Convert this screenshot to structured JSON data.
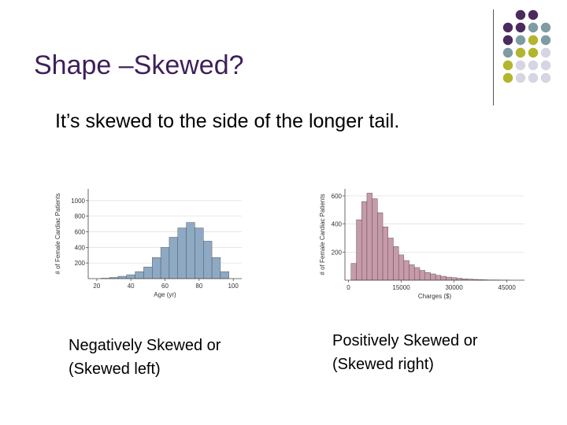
{
  "slide": {
    "title": "Shape –Skewed?",
    "subtitle": "It’s skewed to the side of the longer tail.",
    "caption_left_line1": "Negatively Skewed or",
    "caption_left_line2": "(Skewed left)",
    "caption_right_line1": "Positively Skewed or",
    "caption_right_line2": "(Skewed right)"
  },
  "decoration": {
    "dot_colors": [
      "#4b2a5e",
      "#7f9ba3",
      "#b3b52c",
      "#d5d5e3"
    ]
  },
  "chart_data": [
    {
      "type": "bar",
      "title": "",
      "xlabel": "Age (yr)",
      "ylabel": "# of Female Cardiac Patients",
      "xlim": [
        15,
        105
      ],
      "ylim": [
        0,
        1150
      ],
      "xticks": [
        20,
        40,
        60,
        80,
        100
      ],
      "yticks": [
        200,
        400,
        600,
        800,
        1000
      ],
      "grid": true,
      "bar_color": "#8ea9c4",
      "bin_width": 5,
      "bins": [
        {
          "x": 25,
          "value": 5
        },
        {
          "x": 30,
          "value": 15
        },
        {
          "x": 35,
          "value": 30
        },
        {
          "x": 40,
          "value": 50
        },
        {
          "x": 45,
          "value": 90
        },
        {
          "x": 50,
          "value": 150
        },
        {
          "x": 55,
          "value": 270
        },
        {
          "x": 60,
          "value": 400
        },
        {
          "x": 65,
          "value": 530
        },
        {
          "x": 70,
          "value": 650
        },
        {
          "x": 75,
          "value": 720
        },
        {
          "x": 80,
          "value": 650
        },
        {
          "x": 85,
          "value": 480
        },
        {
          "x": 90,
          "value": 270
        },
        {
          "x": 95,
          "value": 90
        }
      ]
    },
    {
      "type": "bar",
      "title": "",
      "xlabel": "Charges ($)",
      "ylabel": "# of Female Cardiac Patients",
      "xlim": [
        -1000,
        50000
      ],
      "ylim": [
        0,
        650
      ],
      "xticks": [
        0,
        15000,
        30000,
        45000
      ],
      "yticks": [
        200,
        400,
        600
      ],
      "grid": true,
      "bar_color": "#c79aaa",
      "bin_width": 1500,
      "bins": [
        {
          "x": 1500,
          "value": 120
        },
        {
          "x": 3000,
          "value": 430
        },
        {
          "x": 4500,
          "value": 560
        },
        {
          "x": 6000,
          "value": 620
        },
        {
          "x": 7500,
          "value": 580
        },
        {
          "x": 9000,
          "value": 480
        },
        {
          "x": 10500,
          "value": 380
        },
        {
          "x": 12000,
          "value": 300
        },
        {
          "x": 13500,
          "value": 240
        },
        {
          "x": 15000,
          "value": 180
        },
        {
          "x": 16500,
          "value": 140
        },
        {
          "x": 18000,
          "value": 110
        },
        {
          "x": 19500,
          "value": 90
        },
        {
          "x": 21000,
          "value": 70
        },
        {
          "x": 22500,
          "value": 55
        },
        {
          "x": 24000,
          "value": 45
        },
        {
          "x": 25500,
          "value": 35
        },
        {
          "x": 27000,
          "value": 28
        },
        {
          "x": 28500,
          "value": 22
        },
        {
          "x": 30000,
          "value": 18
        },
        {
          "x": 31500,
          "value": 14
        },
        {
          "x": 33000,
          "value": 10
        },
        {
          "x": 34500,
          "value": 8
        },
        {
          "x": 36000,
          "value": 6
        },
        {
          "x": 37500,
          "value": 4
        },
        {
          "x": 39000,
          "value": 3
        },
        {
          "x": 40500,
          "value": 2
        },
        {
          "x": 42000,
          "value": 2
        },
        {
          "x": 43500,
          "value": 1
        },
        {
          "x": 45000,
          "value": 1
        }
      ]
    }
  ]
}
